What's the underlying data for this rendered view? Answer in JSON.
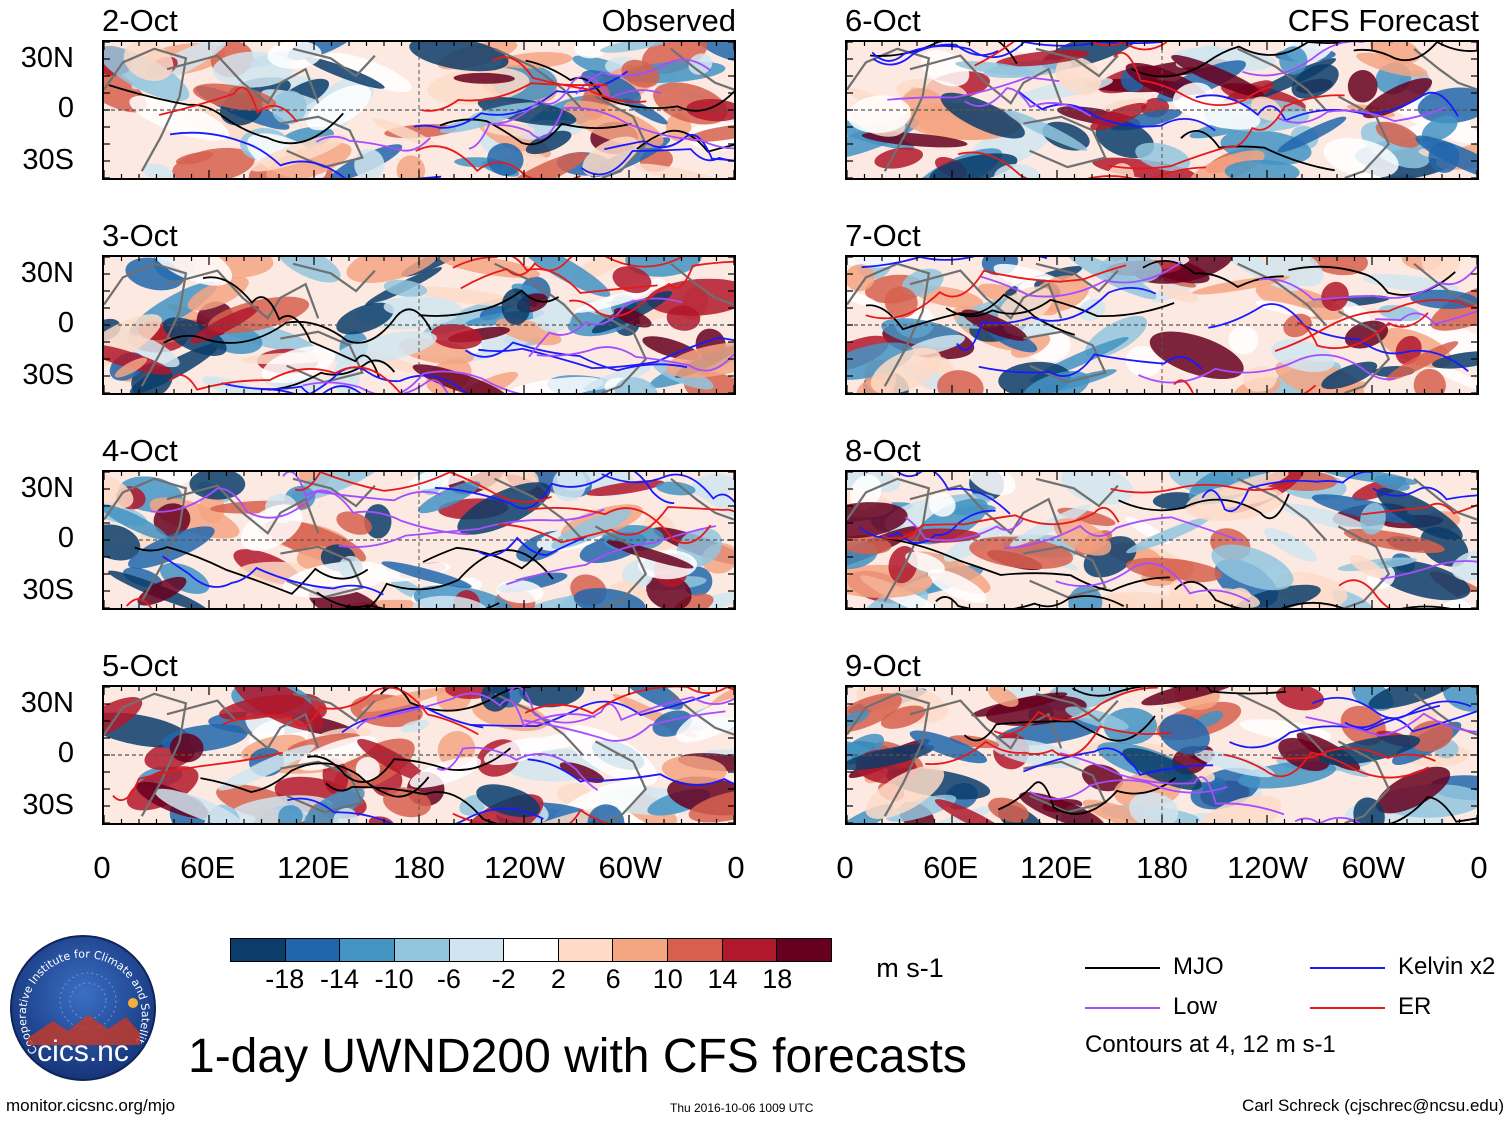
{
  "chart_data": {
    "type": "heatmap",
    "title": "1-day UWND200 with CFS forecasts",
    "variable": "UWND200",
    "units": "m s-1",
    "columns": [
      {
        "label": "Observed",
        "dates": [
          "2-Oct",
          "3-Oct",
          "4-Oct",
          "5-Oct"
        ]
      },
      {
        "label": "CFS Forecast",
        "dates": [
          "6-Oct",
          "7-Oct",
          "8-Oct",
          "9-Oct"
        ]
      }
    ],
    "y_ticks": [
      "30N",
      "0",
      "30S"
    ],
    "y_range_deg": [
      -40,
      40
    ],
    "x_ticks": [
      "0",
      "60E",
      "120E",
      "180",
      "120W",
      "60W",
      "0"
    ],
    "x_range_deg": [
      0,
      360
    ],
    "colorbar": {
      "labels": [
        "-18",
        "-14",
        "-10",
        "-6",
        "-2",
        "2",
        "6",
        "10",
        "14",
        "18"
      ],
      "colors": [
        "#0b3c6a",
        "#2166ac",
        "#4393c3",
        "#92c5de",
        "#d1e5f0",
        "#ffffff",
        "#fddbc7",
        "#f4a582",
        "#d6604d",
        "#b2182b",
        "#67001f"
      ]
    },
    "contours": {
      "note": "Contours at 4, 12 m s-1",
      "series": [
        {
          "name": "MJO",
          "color": "#000000"
        },
        {
          "name": "Kelvin x2",
          "color": "#1a1aff"
        },
        {
          "name": "Low",
          "color": "#a64dff"
        },
        {
          "name": "ER",
          "color": "#e8191a"
        }
      ]
    }
  },
  "footer": {
    "website": "monitor.cicsnc.org/mjo",
    "timestamp": "Thu 2016-10-06 1009 UTC",
    "author": "Carl Schreck (cjschrec@ncsu.edu)"
  },
  "logo": {
    "name": "cics.nc",
    "ring_text": "Cooperative Institute for Climate and Satellites"
  }
}
